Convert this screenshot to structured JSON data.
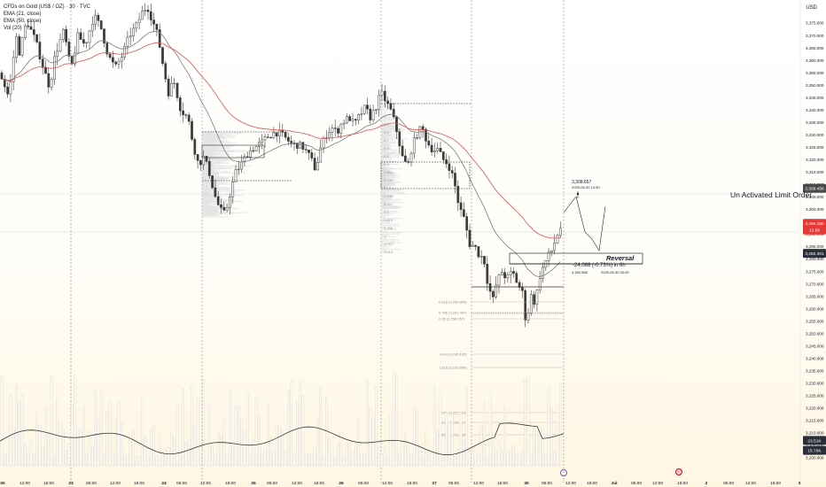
{
  "chart_data": {
    "type": "candlestick",
    "legend": {
      "symbol": "CFDs on Gold (US$ / OZ) · 30 · TVC",
      "ema21": "EMA (21, close)",
      "ema50": "EMA (50, close)",
      "vol": "Vol (20)"
    },
    "currency": "USD",
    "price_ticks": [
      "3,375.000",
      "3,370.000",
      "3,365.000",
      "3,360.000",
      "3,355.000",
      "3,350.000",
      "3,345.000",
      "3,340.000",
      "3,335.000",
      "3,330.000",
      "3,325.000",
      "3,320.000",
      "3,315.000",
      "3,310.000",
      "3,305.000",
      "3,300.000",
      "3,295.000",
      "3,290.000",
      "3,285.000",
      "3,280.000",
      "3,275.000",
      "3,270.000",
      "3,265.000",
      "3,260.000",
      "3,255.000",
      "3,250.000",
      "3,245.000",
      "3,240.000",
      "3,235.000",
      "3,230.000",
      "3,225.000",
      "3,220.000",
      "3,215.000",
      "3,210.000",
      "3,205.000",
      "3,200.000"
    ],
    "ylim": [
      3197.5,
      3380
    ],
    "time_ticks": [
      "00",
      "12:00",
      "18:00",
      "23",
      "06:00",
      "12:00",
      "18:00",
      "24",
      "06:00",
      "12:00",
      "18:00",
      "25",
      "06:00",
      "12:00",
      "18:00",
      "26",
      "06:00",
      "12:00",
      "18:00",
      "27",
      "06:00",
      "12:00",
      "18:00",
      "30",
      "06:00",
      "12:00",
      "18:00",
      "Jul",
      "06:00",
      "12:00",
      "18:00",
      "2",
      "06:00",
      "12:00",
      "18:00",
      "3"
    ],
    "price_tags": [
      {
        "label": "3,308.456",
        "value": 3308.456,
        "color": "#4a4a4a"
      },
      {
        "label": "3,294.380",
        "value": 3294.38,
        "color": "#e53935"
      },
      {
        "label": "12:56",
        "value": 3291.7,
        "color": "#e53935"
      },
      {
        "label": "3,282.301",
        "value": 3282.301,
        "color": "#2a2e39"
      },
      {
        "label": "23.51K",
        "value": 3207.0,
        "color": "#2a2e39"
      },
      {
        "label": "15.76K",
        "value": 3203.0,
        "color": "#2a2e39"
      }
    ],
    "annotations": {
      "limit_order": "Un Activated Limit Order",
      "reversal": "Reversal",
      "target_price": "3,308.657",
      "target_date": "2025-06-30 14:30",
      "range_change": "-24.088 (-0.73%) in 6h",
      "range_low": "3,284.568",
      "range_date": "2025-06-30 20:00"
    },
    "fib_left": [
      "1.",
      "0.9",
      "0.8",
      "0.7",
      "0.6",
      "0.5",
      "0.4",
      "0.382",
      "0.236",
      "0",
      "0.236",
      "0.382",
      "0.5",
      "0.618",
      "0.786",
      "1.",
      "1.272",
      "1.414"
    ],
    "fib_right": [
      "0.618 (3,265.809)",
      "0.786 (3,261.497)",
      "0.65 (3,258.057)",
      "1.414 (3,245.192)",
      "1.618 (3,239.899)",
      "2.272 (3,222.914)",
      "2.414 (3,219.227)",
      "2.618 (3,213.930)"
    ],
    "series_hint": {
      "price_knots": [
        [
          0,
          3355
        ],
        [
          10,
          3345
        ],
        [
          18,
          3370
        ],
        [
          22,
          3363
        ],
        [
          30,
          3376
        ],
        [
          40,
          3368
        ],
        [
          48,
          3358
        ],
        [
          56,
          3349
        ],
        [
          62,
          3362
        ],
        [
          72,
          3372
        ],
        [
          80,
          3356
        ],
        [
          88,
          3370
        ],
        [
          96,
          3366
        ],
        [
          106,
          3378
        ],
        [
          114,
          3373
        ],
        [
          122,
          3362
        ],
        [
          130,
          3357
        ],
        [
          138,
          3362
        ],
        [
          146,
          3370
        ],
        [
          154,
          3374
        ],
        [
          160,
          3379
        ],
        [
          166,
          3382
        ],
        [
          172,
          3376
        ],
        [
          178,
          3370
        ],
        [
          184,
          3358
        ],
        [
          190,
          3347
        ],
        [
          196,
          3352
        ],
        [
          204,
          3340
        ],
        [
          212,
          3337
        ],
        [
          218,
          3326
        ],
        [
          224,
          3318
        ],
        [
          230,
          3321
        ],
        [
          236,
          3315
        ],
        [
          242,
          3306
        ],
        [
          248,
          3300
        ],
        [
          254,
          3298
        ],
        [
          260,
          3307
        ],
        [
          266,
          3315
        ],
        [
          272,
          3318
        ],
        [
          280,
          3323
        ],
        [
          288,
          3325
        ],
        [
          296,
          3327
        ],
        [
          304,
          3330
        ],
        [
          312,
          3331
        ],
        [
          318,
          3330
        ],
        [
          324,
          3328
        ],
        [
          330,
          3326
        ],
        [
          336,
          3326
        ],
        [
          342,
          3325
        ],
        [
          350,
          3321
        ],
        [
          356,
          3316
        ],
        [
          362,
          3325
        ],
        [
          368,
          3330
        ],
        [
          374,
          3333
        ],
        [
          380,
          3331
        ],
        [
          386,
          3335
        ],
        [
          394,
          3337
        ],
        [
          400,
          3334
        ],
        [
          406,
          3338
        ],
        [
          412,
          3341
        ],
        [
          418,
          3337
        ],
        [
          424,
          3341
        ],
        [
          430,
          3347
        ],
        [
          436,
          3343
        ],
        [
          442,
          3339
        ],
        [
          448,
          3331
        ],
        [
          454,
          3321
        ],
        [
          460,
          3317
        ],
        [
          464,
          3324
        ],
        [
          470,
          3330
        ],
        [
          476,
          3333
        ],
        [
          482,
          3327
        ],
        [
          488,
          3324
        ],
        [
          494,
          3324
        ],
        [
          500,
          3320
        ],
        [
          506,
          3318
        ],
        [
          512,
          3312
        ],
        [
          518,
          3301
        ],
        [
          524,
          3296
        ],
        [
          530,
          3286
        ],
        [
          536,
          3285
        ],
        [
          540,
          3282
        ],
        [
          546,
          3280
        ],
        [
          550,
          3271
        ],
        [
          556,
          3263
        ],
        [
          560,
          3270
        ],
        [
          566,
          3275
        ],
        [
          572,
          3272
        ],
        [
          578,
          3275
        ],
        [
          584,
          3270
        ],
        [
          590,
          3266
        ],
        [
          594,
          3252
        ],
        [
          598,
          3266
        ],
        [
          604,
          3262
        ],
        [
          608,
          3272
        ],
        [
          612,
          3276
        ],
        [
          618,
          3281
        ],
        [
          622,
          3283
        ],
        [
          628,
          3289
        ],
        [
          634,
          3294
        ]
      ]
    }
  }
}
